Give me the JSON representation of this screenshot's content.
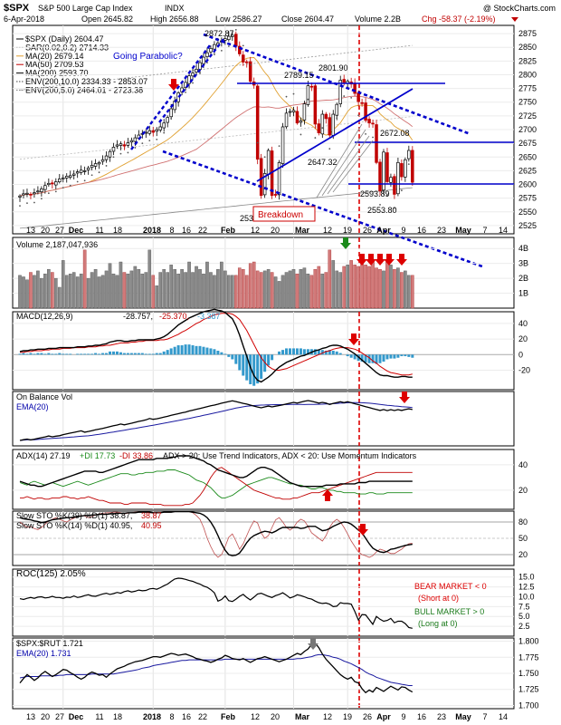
{
  "header": {
    "symbol": "$SPX",
    "name": "S&P 500 Large Cap Index",
    "exchange": "INDX",
    "watermark": "@ StockCharts.com",
    "date": "6-Apr-2018",
    "open": "Open 2645.82",
    "high": "High 2656.88",
    "low": "Low 2586.27",
    "close": "Close 2604.47",
    "volume": "Volume 2.2B",
    "chg": "Chg -58.37 (-2.19%)"
  },
  "price_legend": [
    {
      "text": "$SPX (Daily) 2604.47",
      "color": "#000000"
    },
    {
      "text": "SAR(0.02,0.2) 2714.33",
      "color": "#555555"
    },
    {
      "text": "MA(20) 2679.14",
      "color": "#e0a030"
    },
    {
      "text": "MA(50) 2709.53",
      "color": "#c00000"
    },
    {
      "text": "MA(200) 2593.70",
      "color": "#000000"
    },
    {
      "text": "ENV(200,10.0) 2334.33 - 2853.07",
      "color": "#444444"
    },
    {
      "text": "ENV(200,5.0) 2464.01 - 2723.38",
      "color": "#777777"
    }
  ],
  "annotations": {
    "going_parabolic": "Going Parabolic?",
    "breakdown": "Breakdown",
    "bear_market_1": "BEAR MARKET < 0",
    "bear_market_2": "(Short at 0)",
    "bull_market_1": "BULL MARKET > 0",
    "bull_market_2": "(Long at 0)",
    "price_labels": [
      "2872.87",
      "2789.15",
      "2801.90",
      "2647.32",
      "2672.08",
      "2593.89",
      "2553.80",
      "2532"
    ]
  },
  "x_axis_labels": [
    "13",
    "20",
    "27",
    "Dec",
    "11",
    "18",
    "2018",
    "8",
    "16",
    "22",
    "Feb",
    "12",
    "20",
    "Mar",
    "12",
    "19",
    "26",
    "Apr",
    "9",
    "16",
    "23",
    "May",
    "7",
    "14"
  ],
  "panels": {
    "volume": "Volume 2,187,047,936",
    "macd": {
      "label": "MACD(12,26,9)",
      "v1": "-28.757,",
      "v2": "-25.370,",
      "v3": "-3.387"
    },
    "obv": {
      "label": "On Balance Vol",
      "ema": "EMA(20)"
    },
    "adx": {
      "label": "ADX(14) 27.19",
      "di_plus": "+DI 17.73",
      "di_minus": "-DI 33.86",
      "note": "ADX > 20: Use Trend Indicators, ADX < 20: Use Momentum Indicators"
    },
    "slow_sto": {
      "label1": "Slow STO %K(39) %D(1) 38.87,",
      "label1_val": "38.87",
      "label2": "Slow STO %K(14) %D(1) 40.95,",
      "label2_val": "40.95"
    },
    "roc": "ROC(125) 2.05%",
    "ratio": {
      "label": "$SPX:$RUT 1.721",
      "ema": "EMA(20) 1.731"
    }
  },
  "colors": {
    "up": "#000000",
    "down": "#c00000",
    "trend_blue": "#0000cc",
    "macd_hist": "#3399cc",
    "red_marker": "#dd0000",
    "green_marker": "#1a8a1a",
    "gray_marker": "#777777"
  },
  "chart_data": {
    "type": "line",
    "title": "$SPX S&P 500 Large Cap Index INDX (Daily)",
    "price_axis_ticks": [
      2500,
      2525,
      2550,
      2575,
      2600,
      2625,
      2650,
      2675,
      2700,
      2725,
      2750,
      2775,
      2800,
      2825,
      2850,
      2875
    ],
    "ylim": [
      2510,
      2890
    ],
    "price_close_series": [
      2579,
      2583,
      2584,
      2582,
      2585,
      2588,
      2592,
      2598,
      2602,
      2601,
      2605,
      2610,
      2612,
      2615,
      2616,
      2619,
      2623,
      2626,
      2625,
      2630,
      2635,
      2638,
      2640,
      2645,
      2652,
      2660,
      2668,
      2672,
      2674,
      2670,
      2676,
      2680,
      2685,
      2690,
      2693,
      2695,
      2698,
      2695,
      2700,
      2705,
      2712,
      2722,
      2738,
      2752,
      2767,
      2776,
      2786,
      2798,
      2803,
      2810,
      2822,
      2832,
      2840,
      2848,
      2855,
      2858,
      2862,
      2866,
      2870,
      2872,
      2852,
      2838,
      2823,
      2822,
      2788,
      2781,
      2646,
      2580,
      2620,
      2662,
      2580,
      2581,
      2640,
      2705,
      2730,
      2733,
      2735,
      2712,
      2716,
      2747,
      2780,
      2778,
      2710,
      2694,
      2728,
      2720,
      2690,
      2728,
      2746,
      2790,
      2786,
      2788,
      2783,
      2766,
      2751,
      2749,
      2717,
      2712,
      2711,
      2640,
      2588,
      2659,
      2605,
      2613,
      2582,
      2640,
      2614,
      2645,
      2662,
      2604
    ],
    "volume_ticks": [
      "1B",
      "2B",
      "3B",
      "4B"
    ],
    "volume_values_B": [
      2.2,
      2.1,
      1.9,
      2.4,
      2.2,
      2.5,
      2.0,
      2.3,
      2.6,
      2.4,
      2.0,
      1.4,
      3.2,
      2.2,
      2.3,
      2.4,
      2.1,
      2.3,
      3.9,
      2.0,
      2.4,
      2.6,
      2.1,
      2.2,
      2.5,
      3.0,
      2.3,
      2.2,
      3.1,
      2.4,
      2.3,
      2.5,
      2.8,
      2.6,
      2.3,
      2.4,
      3.9,
      2.2,
      1.5,
      2.4,
      2.6,
      2.4,
      2.9,
      2.6,
      2.3,
      2.6,
      2.4,
      3.1,
      2.4,
      2.8,
      2.6,
      2.3,
      3.1,
      2.4,
      2.2,
      2.6,
      3.1,
      2.5,
      2.2,
      2.2,
      2.2,
      2.7,
      2.6,
      2.2,
      3.0,
      3.1,
      2.5,
      2.4,
      2.5,
      2.6,
      2.4,
      2.1,
      1.8,
      2.2,
      2.4,
      2.5,
      2.6,
      2.3,
      2.6,
      2.7,
      2.3,
      2.2,
      2.6,
      2.8,
      2.3,
      2.4,
      3.9,
      3.2,
      2.5,
      2.4,
      2.8,
      2.9,
      3.2,
      2.9,
      2.8,
      3.0,
      2.9,
      2.8,
      3.2,
      2.7,
      2.6,
      2.5,
      3.1,
      2.9,
      2.6,
      2.7,
      2.4,
      2.5,
      2.2,
      2.2
    ],
    "macd_ticks": [
      -20,
      0,
      20,
      40
    ],
    "macd_ylim": [
      -45,
      55
    ],
    "macd_line": [
      4,
      5,
      5,
      6,
      6,
      7,
      7,
      7,
      8,
      8,
      8,
      9,
      9,
      9,
      9,
      9,
      10,
      10,
      10,
      11,
      11,
      12,
      12,
      13,
      14,
      16,
      17,
      18,
      18,
      17,
      17,
      18,
      18,
      19,
      19,
      19,
      19,
      19,
      20,
      21,
      23,
      26,
      30,
      34,
      38,
      41,
      44,
      47,
      49,
      51,
      53,
      55,
      56,
      57,
      58,
      57,
      56,
      54,
      50,
      46,
      37,
      25,
      11,
      -2,
      -16,
      -27,
      -33,
      -35,
      -32,
      -29,
      -25,
      -20,
      -16,
      -13,
      -10,
      -8,
      -6,
      -4,
      -2,
      -1,
      1,
      3,
      5,
      6,
      8,
      9,
      11,
      12,
      12,
      11,
      9,
      7,
      4,
      1,
      -3,
      -7,
      -11,
      -15,
      -19,
      -23,
      -26,
      -27,
      -27,
      -28,
      -29,
      -29,
      -28,
      -28,
      -29,
      -29
    ],
    "macd_signal": [
      3,
      3,
      4,
      4,
      5,
      5,
      5,
      6,
      6,
      7,
      7,
      7,
      8,
      8,
      8,
      9,
      9,
      9,
      9,
      10,
      10,
      10,
      11,
      11,
      12,
      12,
      13,
      14,
      15,
      15,
      15,
      16,
      16,
      17,
      17,
      18,
      18,
      18,
      18,
      19,
      19,
      20,
      22,
      24,
      26,
      29,
      31,
      34,
      37,
      40,
      42,
      45,
      47,
      49,
      51,
      52,
      53,
      53,
      53,
      52,
      49,
      45,
      38,
      31,
      22,
      13,
      4,
      -4,
      -10,
      -15,
      -18,
      -20,
      -20,
      -19,
      -18,
      -16,
      -14,
      -12,
      -10,
      -8,
      -6,
      -4,
      -2,
      0,
      2,
      4,
      5,
      7,
      8,
      9,
      9,
      9,
      8,
      7,
      5,
      2,
      -1,
      -4,
      -8,
      -11,
      -15,
      -18,
      -21,
      -23,
      -24,
      -25,
      -26,
      -26,
      -26,
      -25
    ],
    "obv_ema_label": "EMA(20)",
    "adx_ticks": [
      20,
      40
    ],
    "adx_ylim": [
      5,
      52
    ],
    "adx": [
      27,
      26,
      25,
      24,
      24,
      23,
      23,
      24,
      25,
      26,
      27,
      28,
      29,
      30,
      31,
      32,
      33,
      34,
      35,
      35,
      35,
      35,
      34,
      34,
      35,
      36,
      37,
      38,
      39,
      40,
      41,
      42,
      43,
      44,
      44,
      44,
      44,
      44,
      45,
      45,
      45,
      45,
      46,
      46,
      47,
      47,
      47,
      47,
      46,
      45,
      44,
      43,
      41,
      40,
      38,
      36,
      35,
      34,
      33,
      32,
      31,
      30,
      30,
      31,
      33,
      35,
      37,
      38,
      38,
      37,
      36,
      34,
      32,
      30,
      28,
      26,
      25,
      24,
      23,
      23,
      23,
      23,
      23,
      23,
      23,
      24,
      24,
      24,
      24,
      25,
      25,
      25,
      25,
      25,
      26,
      26,
      26,
      27,
      27,
      27,
      27,
      27,
      27,
      27,
      27,
      27,
      27,
      27,
      27,
      27
    ],
    "di_plus": [
      26,
      25,
      24,
      26,
      27,
      26,
      25,
      24,
      25,
      26,
      25,
      24,
      23,
      24,
      25,
      26,
      27,
      26,
      25,
      24,
      25,
      26,
      27,
      28,
      29,
      30,
      31,
      32,
      33,
      33,
      33,
      32,
      32,
      33,
      33,
      34,
      34,
      34,
      35,
      35,
      35,
      36,
      36,
      36,
      35,
      34,
      33,
      32,
      30,
      28,
      27,
      26,
      24,
      22,
      19,
      16,
      14,
      14,
      15,
      16,
      18,
      20,
      22,
      24,
      25,
      26,
      27,
      28,
      29,
      30,
      30,
      29,
      28,
      27,
      26,
      25,
      25,
      24,
      24,
      23,
      22,
      21,
      21,
      22,
      22,
      21,
      20,
      20,
      19,
      19,
      18,
      18,
      18,
      18,
      17,
      17,
      17,
      18,
      18,
      17,
      17,
      17,
      18,
      18,
      18,
      18,
      18,
      18,
      18,
      18
    ],
    "di_minus": [
      14,
      14,
      15,
      14,
      13,
      14,
      14,
      13,
      13,
      14,
      14,
      14,
      15,
      15,
      14,
      14,
      13,
      14,
      14,
      15,
      14,
      13,
      12,
      12,
      11,
      10,
      10,
      10,
      10,
      9,
      9,
      10,
      10,
      10,
      10,
      10,
      9,
      9,
      9,
      9,
      8,
      8,
      8,
      8,
      8,
      8,
      9,
      9,
      10,
      13,
      16,
      20,
      25,
      30,
      34,
      37,
      38,
      36,
      34,
      32,
      30,
      28,
      26,
      24,
      22,
      20,
      19,
      18,
      17,
      16,
      15,
      14,
      14,
      13,
      13,
      13,
      14,
      14,
      15,
      16,
      17,
      18,
      18,
      18,
      19,
      20,
      21,
      22,
      23,
      24,
      25,
      26,
      27,
      28,
      29,
      30,
      31,
      32,
      33,
      34,
      34,
      34,
      34,
      34,
      34,
      34,
      34,
      34,
      34,
      34
    ],
    "sto_ticks": [
      20,
      50,
      80
    ],
    "sto_k39": [
      88,
      86,
      85,
      84,
      82,
      81,
      79,
      80,
      82,
      84,
      85,
      86,
      87,
      88,
      88,
      89,
      90,
      91,
      92,
      92,
      93,
      93,
      94,
      94,
      94,
      95,
      95,
      96,
      96,
      96,
      97,
      97,
      97,
      98,
      98,
      98,
      98,
      97,
      97,
      97,
      98,
      98,
      98,
      99,
      99,
      99,
      99,
      99,
      98,
      97,
      96,
      93,
      88,
      80,
      69,
      55,
      40,
      28,
      20,
      18,
      19,
      23,
      32,
      42,
      50,
      55,
      58,
      61,
      63,
      62,
      60,
      63,
      67,
      70,
      70,
      70,
      70,
      70,
      68,
      69,
      72,
      72,
      72,
      68,
      64,
      65,
      68,
      72,
      75,
      78,
      80,
      79,
      76,
      71,
      65,
      60,
      50,
      40,
      32,
      28,
      25,
      24,
      26,
      30,
      31,
      33,
      35,
      37,
      38,
      39
    ],
    "sto_k14": [
      80,
      75,
      70,
      72,
      68,
      66,
      70,
      76,
      82,
      85,
      88,
      85,
      82,
      80,
      84,
      87,
      90,
      92,
      91,
      88,
      90,
      93,
      95,
      96,
      97,
      97,
      98,
      98,
      97,
      95,
      96,
      97,
      98,
      98,
      98,
      98,
      97,
      96,
      97,
      97,
      98,
      98,
      98,
      99,
      99,
      99,
      99,
      99,
      97,
      92,
      85,
      70,
      50,
      35,
      22,
      15,
      20,
      35,
      52,
      58,
      45,
      30,
      40,
      55,
      70,
      82,
      78,
      60,
      50,
      55,
      70,
      84,
      88,
      80,
      70,
      65,
      70,
      80,
      85,
      82,
      72,
      60,
      55,
      50,
      45,
      55,
      70,
      80,
      85,
      80,
      70,
      58,
      45,
      35,
      25,
      20,
      18,
      15,
      18,
      25,
      30,
      28,
      25,
      22,
      22,
      26,
      30,
      36,
      40,
      41
    ],
    "roc_ticks": [
      2.5,
      5.0,
      7.5,
      10.0,
      12.5,
      15.0
    ],
    "roc_ylim": [
      0,
      17
    ],
    "roc": [
      9.5,
      9.3,
      9.6,
      9.8,
      9.6,
      9.9,
      10.0,
      9.7,
      9.8,
      10.1,
      9.8,
      9.8,
      9.6,
      9.9,
      9.8,
      10.2,
      9.8,
      10.0,
      10.3,
      10.5,
      10.2,
      10.1,
      10.4,
      10.7,
      10.9,
      10.6,
      10.8,
      11.1,
      10.9,
      11.3,
      11.5,
      11.2,
      11.4,
      11.7,
      11.5,
      11.6,
      12.0,
      12.1,
      11.9,
      12.3,
      12.8,
      13.2,
      13.9,
      14.5,
      14.7,
      14.6,
      14.4,
      14.1,
      13.9,
      13.5,
      13.2,
      12.7,
      12.4,
      11.8,
      11.0,
      8.9,
      9.3,
      10.2,
      9.0,
      8.8,
      9.4,
      10.1,
      10.6,
      9.8,
      9.2,
      9.9,
      10.7,
      10.9,
      10.5,
      10.1,
      9.8,
      10.3,
      10.6,
      11.0,
      10.4,
      9.7,
      10.0,
      10.5,
      10.3,
      10.0,
      9.6,
      9.4,
      8.9,
      8.5,
      8.3,
      8.4,
      8.1,
      7.5,
      7.6,
      8.5,
      8.3,
      8.3,
      8.1,
      6.3,
      4.1,
      5.5,
      5.4,
      4.2,
      3.0,
      5.0,
      4.3,
      3.8,
      4.0,
      4.5,
      3.4,
      3.8,
      3.8,
      3.2,
      2.2,
      2.0
    ],
    "ratio_ticks": [
      1.7,
      1.725,
      1.75,
      1.775,
      1.8
    ],
    "ratio_ylim": [
      1.695,
      1.805
    ],
    "ratio": [
      1.735,
      1.742,
      1.748,
      1.744,
      1.739,
      1.743,
      1.749,
      1.753,
      1.749,
      1.745,
      1.748,
      1.752,
      1.756,
      1.755,
      1.751,
      1.748,
      1.744,
      1.741,
      1.744,
      1.749,
      1.752,
      1.75,
      1.747,
      1.748,
      1.744,
      1.749,
      1.753,
      1.757,
      1.759,
      1.761,
      1.764,
      1.766,
      1.768,
      1.769,
      1.77,
      1.772,
      1.774,
      1.776,
      1.776,
      1.775,
      1.777,
      1.779,
      1.781,
      1.78,
      1.778,
      1.779,
      1.78,
      1.778,
      1.776,
      1.773,
      1.772,
      1.77,
      1.769,
      1.767,
      1.769,
      1.772,
      1.774,
      1.778,
      1.776,
      1.773,
      1.772,
      1.771,
      1.773,
      1.77,
      1.767,
      1.77,
      1.773,
      1.774,
      1.776,
      1.774,
      1.772,
      1.77,
      1.768,
      1.77,
      1.772,
      1.775,
      1.778,
      1.781,
      1.779,
      1.784,
      1.788,
      1.795,
      1.797,
      1.79,
      1.78,
      1.772,
      1.766,
      1.76,
      1.754,
      1.748,
      1.744,
      1.741,
      1.744,
      1.737,
      1.735,
      1.726,
      1.72,
      1.724,
      1.721,
      1.728,
      1.725,
      1.722,
      1.726,
      1.73,
      1.727,
      1.724,
      1.729,
      1.728,
      1.724,
      1.721
    ],
    "ratio_ema": [
      1.743,
      1.744,
      1.745,
      1.745,
      1.745,
      1.745,
      1.746,
      1.746,
      1.746,
      1.746,
      1.746,
      1.747,
      1.747,
      1.748,
      1.748,
      1.748,
      1.748,
      1.748,
      1.748,
      1.748,
      1.749,
      1.749,
      1.749,
      1.749,
      1.749,
      1.749,
      1.749,
      1.75,
      1.751,
      1.752,
      1.753,
      1.754,
      1.755,
      1.756,
      1.758,
      1.759,
      1.76,
      1.762,
      1.763,
      1.764,
      1.765,
      1.766,
      1.767,
      1.768,
      1.769,
      1.77,
      1.77,
      1.771,
      1.771,
      1.771,
      1.771,
      1.771,
      1.771,
      1.771,
      1.771,
      1.771,
      1.771,
      1.772,
      1.772,
      1.772,
      1.772,
      1.772,
      1.772,
      1.772,
      1.772,
      1.772,
      1.772,
      1.772,
      1.772,
      1.772,
      1.772,
      1.772,
      1.772,
      1.772,
      1.772,
      1.772,
      1.772,
      1.773,
      1.773,
      1.774,
      1.775,
      1.776,
      1.778,
      1.779,
      1.779,
      1.778,
      1.777,
      1.775,
      1.774,
      1.772,
      1.769,
      1.767,
      1.765,
      1.762,
      1.759,
      1.756,
      1.752,
      1.749,
      1.747,
      1.744,
      1.742,
      1.74,
      1.738,
      1.736,
      1.735,
      1.734,
      1.733,
      1.732,
      1.731,
      1.731
    ]
  }
}
